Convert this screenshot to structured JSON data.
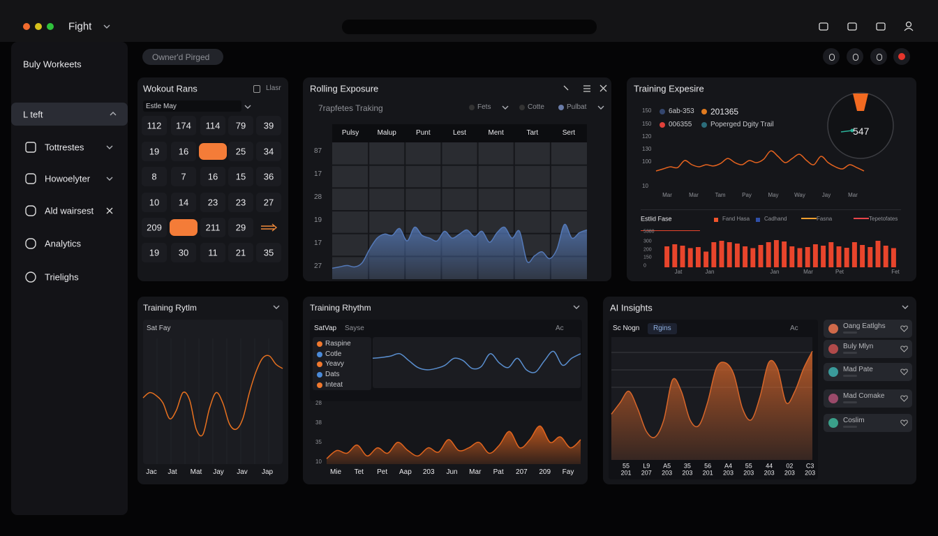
{
  "topbar": {
    "app": "Fight"
  },
  "sidebar": {
    "title": "Buly Workeets",
    "items": [
      "L teft",
      "Tottrestes",
      "Howoelyter",
      "Ald wairsest",
      "Analytics",
      "Trielighs"
    ]
  },
  "badge": "Owner'd Pirged",
  "panels": {
    "calendar": {
      "title": "Wokout Rans",
      "action": "Llasr",
      "filter": "Estle May",
      "rows": [
        [
          "112",
          "174",
          "114",
          "79",
          "39"
        ],
        [
          "19",
          "16",
          null,
          "25",
          "34"
        ],
        [
          "8",
          "7",
          "16",
          "15",
          "36"
        ],
        [
          "10",
          "14",
          "23",
          "23",
          "27"
        ],
        [
          "209",
          null,
          "211",
          "29"
        ],
        [
          "19",
          "30",
          "11",
          "21",
          "35"
        ]
      ]
    },
    "rolling": {
      "title": "Rolling Exposure",
      "subtitle": "7rapfetes Traking",
      "filters": [
        "Fets",
        "Cotte",
        "Pulbat"
      ],
      "columns": [
        "Pulsy",
        "Malup",
        "Punt",
        "Lest",
        "Ment",
        "Tart",
        "Sert"
      ],
      "row_labels": [
        "87",
        "17",
        "28",
        "19",
        "17",
        "27"
      ],
      "chart": {
        "type": "area",
        "color": "#5479b8",
        "ylim": [
          0,
          100
        ],
        "values": [
          8,
          9,
          10,
          9,
          12,
          22,
          30,
          33,
          32,
          37,
          28,
          38,
          32,
          30,
          28,
          35,
          30,
          33,
          36,
          31,
          35,
          27,
          34,
          38,
          30,
          35,
          13,
          17,
          20,
          15,
          22,
          40,
          30,
          34,
          36
        ]
      }
    },
    "exposure": {
      "title": "Training Expesire",
      "legend": [
        {
          "name": "6ab-353",
          "color": "#34466e"
        },
        {
          "name": "201365",
          "color": "#e07a1f"
        },
        {
          "name": "006355",
          "color": "#e0403a"
        },
        {
          "name": "Poperged Dgity Trail",
          "color": "#2b6c7a"
        }
      ],
      "gauge": "547",
      "y_labels": [
        "150",
        "150",
        "120",
        "130",
        "100",
        "10"
      ],
      "x_labels": [
        "Mar",
        "Mar",
        "Tam",
        "Pay",
        "May",
        "Way",
        "Jay",
        "Mar"
      ],
      "chart": {
        "type": "line",
        "color": "#e8641f",
        "ylim": [
          0,
          100
        ],
        "values": [
          30,
          35,
          40,
          38,
          55,
          45,
          40,
          45,
          42,
          48,
          60,
          50,
          45,
          55,
          50,
          58,
          78,
          65,
          50,
          60,
          70,
          55,
          45,
          65,
          50,
          40,
          35,
          45,
          38,
          30
        ]
      },
      "bars": {
        "title": "Estlid Fase",
        "legend": [
          {
            "name": "Fand Hasa",
            "color": "#f0542c"
          },
          {
            "name": "Cadhand",
            "color": "#2f4fa8"
          },
          {
            "name": "Fasna",
            "color": "#f0a030"
          },
          {
            "name": "Tepetofates",
            "color": "#e8454a"
          }
        ],
        "y_labels": [
          "5380",
          "300",
          "200",
          "150",
          "0"
        ],
        "x_labels": [
          "Jat",
          "Jan",
          "Jan",
          "Mar",
          "Pet",
          "Fet"
        ],
        "chart": {
          "type": "bar",
          "color": "#e8452c",
          "ylim": [
            0,
            100
          ],
          "values": [
            60,
            66,
            62,
            55,
            58,
            45,
            72,
            76,
            72,
            68,
            60,
            55,
            64,
            72,
            78,
            74,
            60,
            55,
            58,
            66,
            62,
            72,
            60,
            56,
            72,
            64,
            58,
            76,
            62,
            55
          ]
        }
      }
    },
    "rhythm_small": {
      "title": "Training Rytlm",
      "subtitle": "Sat Fay",
      "x_labels": [
        "Jac",
        "Jat",
        "Mat",
        "Jay",
        "Jav",
        "Jap"
      ],
      "chart": {
        "type": "line",
        "color": "#e8711f",
        "ylim": [
          0,
          100
        ],
        "values": [
          50,
          55,
          52,
          45,
          30,
          38,
          55,
          48,
          20,
          15,
          40,
          55,
          45,
          25,
          20,
          30,
          55,
          75,
          88,
          90,
          82,
          78
        ]
      }
    },
    "rhythm": {
      "title": "Training Rhythm",
      "tabs": [
        "SatVap",
        "Sayse"
      ],
      "action": "Ac",
      "legend": [
        {
          "name": "Raspine",
          "color": "#f0782e"
        },
        {
          "name": "Cotle",
          "color": "#4a8ad8"
        },
        {
          "name": "Yeavy",
          "color": "#f0782e"
        },
        {
          "name": "Dats",
          "color": "#4a8ad8"
        },
        {
          "name": "Inteat",
          "color": "#f0782e"
        }
      ],
      "y_labels": [
        "28",
        "38",
        "35",
        "10"
      ],
      "x_labels": [
        "Mie",
        "Tet",
        "Pet",
        "Aap",
        "203",
        "Jun",
        "Mar",
        "Pat",
        "207",
        "209",
        "Fay"
      ],
      "line": {
        "type": "line",
        "color": "#5a8fd0",
        "ylim": [
          0,
          100
        ],
        "values": [
          60,
          62,
          65,
          70,
          55,
          40,
          35,
          38,
          45,
          60,
          55,
          38,
          42,
          70,
          50,
          40,
          60,
          35,
          30,
          55,
          75,
          45,
          60,
          70
        ]
      },
      "area": {
        "type": "area",
        "color": "#e0641e",
        "ylim": [
          0,
          100
        ],
        "values": [
          10,
          25,
          20,
          35,
          15,
          30,
          20,
          40,
          25,
          15,
          30,
          22,
          45,
          25,
          30,
          40,
          20,
          35,
          60,
          30,
          45,
          70,
          40,
          50,
          30,
          45
        ]
      }
    },
    "insights": {
      "title": "AI Insights",
      "tabs": [
        "Sc Nogn",
        "Rgins"
      ],
      "action": "Ac",
      "x_labels": [
        [
          "55",
          "201"
        ],
        [
          "L9",
          "207"
        ],
        [
          "A5",
          "203"
        ],
        [
          "35",
          "203"
        ],
        [
          "56",
          "201"
        ],
        [
          "A4",
          "203"
        ],
        [
          "55",
          "203"
        ],
        [
          "44",
          "203"
        ],
        [
          "02",
          "203"
        ],
        [
          "C3",
          "203"
        ]
      ],
      "chart": {
        "type": "area",
        "color": "#d7662a",
        "ylim": [
          0,
          100
        ],
        "values": [
          40,
          50,
          60,
          45,
          25,
          20,
          35,
          70,
          60,
          35,
          30,
          50,
          80,
          85,
          75,
          45,
          35,
          55,
          85,
          80,
          50,
          60,
          80,
          95
        ]
      },
      "people": [
        "Oang Eatlghs",
        "Buly Mlyn",
        "Mad Pate",
        "Mad Comake",
        "Coslim"
      ]
    }
  }
}
